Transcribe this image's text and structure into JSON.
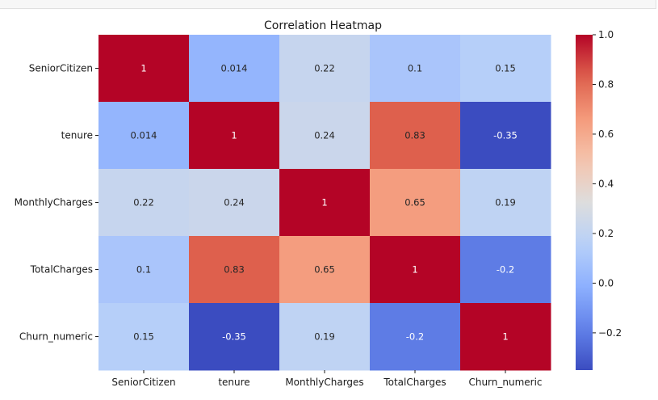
{
  "chart_data": {
    "type": "heatmap",
    "title": "Correlation Heatmap",
    "colormap": "coolwarm",
    "rows": [
      "SeniorCitizen",
      "tenure",
      "MonthlyCharges",
      "TotalCharges",
      "Churn_numeric"
    ],
    "columns": [
      "SeniorCitizen",
      "tenure",
      "MonthlyCharges",
      "TotalCharges",
      "Churn_numeric"
    ],
    "values": [
      [
        1,
        0.014,
        0.22,
        0.1,
        0.15
      ],
      [
        0.014,
        1,
        0.24,
        0.83,
        -0.35
      ],
      [
        0.22,
        0.24,
        1,
        0.65,
        0.19
      ],
      [
        0.1,
        0.83,
        0.65,
        1,
        -0.2
      ],
      [
        0.15,
        -0.35,
        0.19,
        -0.2,
        1
      ]
    ],
    "annotations": [
      [
        "1",
        "0.014",
        "0.22",
        "0.1",
        "0.15"
      ],
      [
        "0.014",
        "1",
        "0.24",
        "0.83",
        "-0.35"
      ],
      [
        "0.22",
        "0.24",
        "1",
        "0.65",
        "0.19"
      ],
      [
        "0.1",
        "0.83",
        "0.65",
        "1",
        "-0.2"
      ],
      [
        "0.15",
        "-0.35",
        "0.19",
        "-0.2",
        "1"
      ]
    ],
    "colorbar": {
      "min": -0.35,
      "max": 1.0,
      "ticks": [
        1.0,
        0.8,
        0.6,
        0.4,
        0.2,
        0.0,
        -0.2
      ],
      "tick_labels": [
        "1.0",
        "0.8",
        "0.6",
        "0.4",
        "0.2",
        "0.0",
        "−0.2"
      ]
    }
  }
}
